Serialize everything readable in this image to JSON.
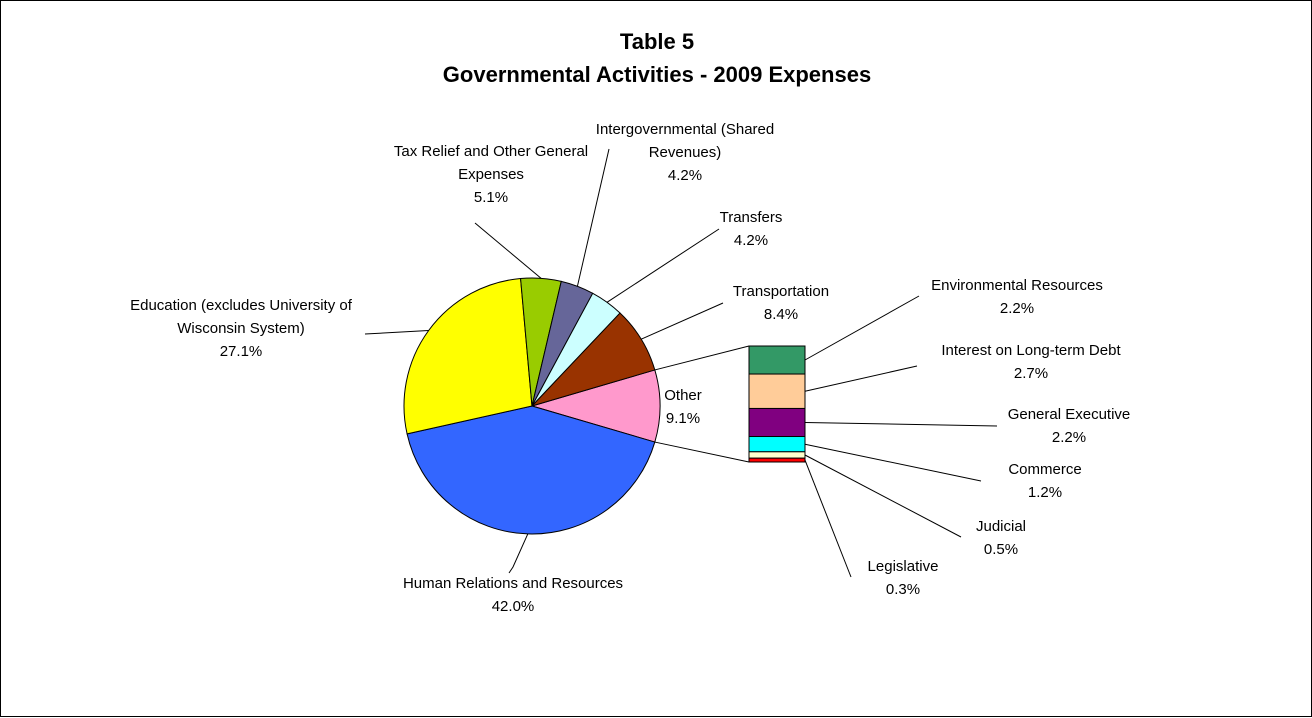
{
  "chart_data": {
    "type": "pie",
    "title": "Table 5",
    "subtitle": "Governmental Activities - 2009 Expenses",
    "value_format": "percent",
    "slices": [
      {
        "label": "Other",
        "label_lines": [
          "Other"
        ],
        "value": 9.1,
        "display": "9.1%",
        "color": "#FF99CC"
      },
      {
        "label": "Human Relations and Resources",
        "label_lines": [
          "Human Relations and Resources"
        ],
        "value": 42.0,
        "display": "42.0%",
        "color": "#3366FF"
      },
      {
        "label": "Education (excludes University of Wisconsin System)",
        "label_lines": [
          "Education (excludes University of",
          "Wisconsin System)"
        ],
        "value": 27.1,
        "display": "27.1%",
        "color": "#FFFF00"
      },
      {
        "label": "Tax Relief and Other General Expenses",
        "label_lines": [
          "Tax Relief and Other General",
          "Expenses"
        ],
        "value": 5.1,
        "display": "5.1%",
        "color": "#99CC00"
      },
      {
        "label": "Intergovernmental (Shared Revenues)",
        "label_lines": [
          "Intergovernmental (Shared",
          "Revenues)"
        ],
        "value": 4.2,
        "display": "4.2%",
        "color": "#666699"
      },
      {
        "label": "Transfers",
        "label_lines": [
          "Transfers"
        ],
        "value": 4.2,
        "display": "4.2%",
        "color": "#CCFFFF"
      },
      {
        "label": "Transportation",
        "label_lines": [
          "Transportation"
        ],
        "value": 8.4,
        "display": "8.4%",
        "color": "#993300"
      }
    ],
    "other_breakdown": [
      {
        "label": "Environmental Resources",
        "value": 2.2,
        "display": "2.2%",
        "color": "#339966"
      },
      {
        "label": "Interest on Long-term Debt",
        "value": 2.7,
        "display": "2.7%",
        "color": "#FFCC99"
      },
      {
        "label": "General Executive",
        "value": 2.2,
        "display": "2.2%",
        "color": "#800080"
      },
      {
        "label": "Commerce",
        "value": 1.2,
        "display": "1.2%",
        "color": "#00FFFF"
      },
      {
        "label": "Judicial",
        "value": 0.5,
        "display": "0.5%",
        "color": "#FFFFCC"
      },
      {
        "label": "Legislative",
        "value": 0.3,
        "display": "0.3%",
        "color": "#FF0000"
      }
    ]
  }
}
